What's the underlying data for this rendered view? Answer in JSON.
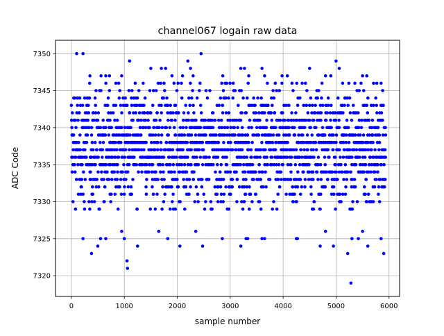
{
  "chart_data": {
    "type": "scatter",
    "title": "channel067 logain raw data",
    "xlabel": "sample number",
    "ylabel": "ADC Code",
    "xlim": [
      -300,
      6200
    ],
    "ylim": [
      7317.2,
      7351.8
    ],
    "xticks": [
      0,
      1000,
      2000,
      3000,
      4000,
      5000,
      6000
    ],
    "yticks": [
      7320,
      7325,
      7330,
      7335,
      7340,
      7345,
      7350
    ],
    "grid": true,
    "marker_color": "#0000ff",
    "series": [
      {
        "n_samples": 5940,
        "x_start": 0,
        "x_end": 5939,
        "dense_band": [
          7329,
          7346
        ],
        "outliers": [
          {
            "x": 100,
            "y": 7350
          },
          {
            "x": 220,
            "y": 7350
          },
          {
            "x": 2450,
            "y": 7350
          },
          {
            "x": 1100,
            "y": 7349
          },
          {
            "x": 2200,
            "y": 7349
          },
          {
            "x": 5000,
            "y": 7349
          },
          {
            "x": 1500,
            "y": 7348
          },
          {
            "x": 1700,
            "y": 7348
          },
          {
            "x": 1780,
            "y": 7348
          },
          {
            "x": 2250,
            "y": 7348
          },
          {
            "x": 3200,
            "y": 7348
          },
          {
            "x": 3270,
            "y": 7348
          },
          {
            "x": 3600,
            "y": 7348
          },
          {
            "x": 4500,
            "y": 7348
          },
          {
            "x": 5060,
            "y": 7348
          },
          {
            "x": 350,
            "y": 7347
          },
          {
            "x": 560,
            "y": 7347
          },
          {
            "x": 650,
            "y": 7347
          },
          {
            "x": 720,
            "y": 7347
          },
          {
            "x": 950,
            "y": 7347
          },
          {
            "x": 1900,
            "y": 7347
          },
          {
            "x": 2100,
            "y": 7347
          },
          {
            "x": 2300,
            "y": 7347
          },
          {
            "x": 2860,
            "y": 7347
          },
          {
            "x": 3350,
            "y": 7347
          },
          {
            "x": 3650,
            "y": 7347
          },
          {
            "x": 3980,
            "y": 7347
          },
          {
            "x": 4080,
            "y": 7347
          },
          {
            "x": 4800,
            "y": 7347
          },
          {
            "x": 4900,
            "y": 7347
          },
          {
            "x": 5500,
            "y": 7347
          },
          {
            "x": 5580,
            "y": 7347
          },
          {
            "x": 1650,
            "y": 7326
          },
          {
            "x": 950,
            "y": 7326
          },
          {
            "x": 2350,
            "y": 7326
          },
          {
            "x": 4800,
            "y": 7326
          },
          {
            "x": 5500,
            "y": 7326
          },
          {
            "x": 220,
            "y": 7325
          },
          {
            "x": 550,
            "y": 7325
          },
          {
            "x": 650,
            "y": 7325
          },
          {
            "x": 1000,
            "y": 7325
          },
          {
            "x": 1820,
            "y": 7325
          },
          {
            "x": 2850,
            "y": 7325
          },
          {
            "x": 3300,
            "y": 7325
          },
          {
            "x": 3330,
            "y": 7325
          },
          {
            "x": 3600,
            "y": 7325
          },
          {
            "x": 3650,
            "y": 7325
          },
          {
            "x": 4250,
            "y": 7325
          },
          {
            "x": 4270,
            "y": 7325
          },
          {
            "x": 5300,
            "y": 7325
          },
          {
            "x": 5420,
            "y": 7325
          },
          {
            "x": 5850,
            "y": 7325
          },
          {
            "x": 500,
            "y": 7324
          },
          {
            "x": 1250,
            "y": 7324
          },
          {
            "x": 2050,
            "y": 7324
          },
          {
            "x": 2480,
            "y": 7324
          },
          {
            "x": 3200,
            "y": 7324
          },
          {
            "x": 4700,
            "y": 7324
          },
          {
            "x": 4950,
            "y": 7324
          },
          {
            "x": 5600,
            "y": 7324
          },
          {
            "x": 380,
            "y": 7323
          },
          {
            "x": 5220,
            "y": 7323
          },
          {
            "x": 5900,
            "y": 7323
          },
          {
            "x": 1050,
            "y": 7322
          },
          {
            "x": 1060,
            "y": 7321
          },
          {
            "x": 5280,
            "y": 7319
          }
        ]
      }
    ]
  }
}
